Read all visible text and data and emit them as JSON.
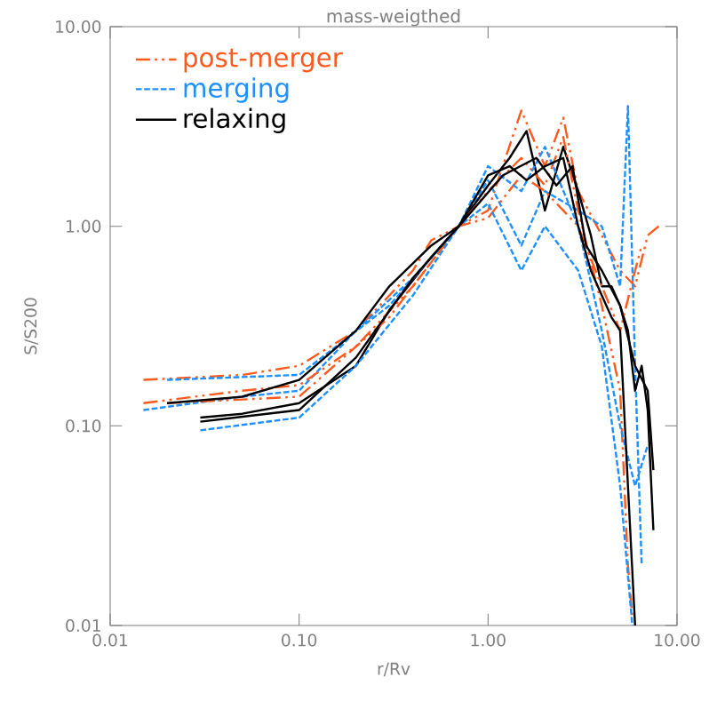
{
  "chart_data": {
    "type": "line",
    "title": "mass-weigthed",
    "xlabel": "r/Rv",
    "ylabel": "S/S200",
    "log": "xy",
    "xlim": [
      0.01,
      10
    ],
    "ylim": [
      0.01,
      10
    ],
    "xticks": [
      {
        "value": 0.01,
        "label": "0.01"
      },
      {
        "value": 0.1,
        "label": "0.10"
      },
      {
        "value": 1,
        "label": "1.00"
      },
      {
        "value": 10,
        "label": "10.00"
      }
    ],
    "yticks": [
      {
        "value": 0.01,
        "label": "0.01"
      },
      {
        "value": 0.1,
        "label": "0.10"
      },
      {
        "value": 1,
        "label": "1.00"
      },
      {
        "value": 10,
        "label": "10.00"
      }
    ],
    "legend": "top left",
    "grid": false,
    "marker": "none",
    "series": [
      {
        "name": "post-merger",
        "color": "#ff5a1e",
        "line_style": "dashdotdotted",
        "x": [
          0.015,
          0.05,
          0.1,
          0.2,
          0.4,
          0.5,
          0.7,
          1,
          1.5,
          2,
          2.5,
          3,
          4,
          5,
          6,
          7,
          8
        ],
        "values": [
          0.17,
          0.18,
          0.2,
          0.3,
          0.6,
          0.85,
          1.0,
          1.2,
          3.8,
          2.0,
          3.5,
          1.5,
          0.9,
          0.6,
          0.5,
          0.9,
          1.0
        ]
      },
      {
        "name": "merging",
        "color": "#1e90ff",
        "line_style": "dashed",
        "x": [
          0.015,
          0.05,
          0.1,
          0.2,
          0.4,
          0.7,
          1,
          1.5,
          2,
          3,
          4,
          5,
          5.5,
          6,
          6.5
        ],
        "values": [
          0.12,
          0.14,
          0.15,
          0.3,
          0.55,
          1.0,
          1.7,
          0.8,
          1.5,
          1.2,
          1.0,
          0.5,
          4.0,
          0.2,
          0.02
        ]
      },
      {
        "name": "relaxing",
        "color": "#000000",
        "line_style": "solid",
        "x": [
          0.03,
          0.05,
          0.1,
          0.2,
          0.3,
          0.5,
          0.7,
          1.0,
          1.3,
          1.6,
          2.0,
          2.5,
          3.0,
          3.5,
          4.0,
          4.5,
          5.0,
          5.5,
          6.0,
          6.5,
          7,
          7.5
        ],
        "values": [
          0.11,
          0.115,
          0.13,
          0.2,
          0.38,
          0.7,
          1.0,
          1.6,
          2.2,
          3.0,
          1.2,
          2.5,
          1.5,
          0.9,
          0.5,
          0.5,
          0.4,
          0.3,
          0.15,
          0.2,
          0.12,
          0.03
        ]
      },
      {
        "color": "#ff5a1e",
        "line_style": "dashdotdotted",
        "x": [
          0.015,
          0.05,
          0.1,
          0.2,
          0.4,
          0.7,
          1,
          1.5,
          2,
          2.5,
          3,
          4,
          5,
          5.5,
          5.8
        ],
        "values": [
          0.13,
          0.15,
          0.16,
          0.25,
          0.5,
          1.0,
          1.5,
          2.2,
          1.6,
          2.8,
          1.2,
          0.4,
          0.15,
          0.02,
          0.011
        ]
      },
      {
        "color": "#ff5a1e",
        "line_style": "dashdotdotted",
        "x": [
          0.02,
          0.1,
          0.3,
          0.7,
          1,
          1.5,
          2,
          3,
          4,
          5,
          6,
          6.5
        ],
        "values": [
          0.13,
          0.14,
          0.35,
          1.0,
          1.1,
          1.8,
          1.5,
          1.0,
          0.5,
          0.3,
          0.6,
          0.8
        ]
      },
      {
        "color": "#1e90ff",
        "line_style": "dashed",
        "x": [
          0.03,
          0.1,
          0.2,
          0.4,
          0.7,
          1,
          1.5,
          2,
          3,
          4,
          5,
          6,
          7
        ],
        "values": [
          0.095,
          0.11,
          0.2,
          0.45,
          1.0,
          2.0,
          1.5,
          2.5,
          1.0,
          0.3,
          0.1,
          0.05,
          0.08
        ]
      },
      {
        "color": "#1e90ff",
        "line_style": "dashed",
        "x": [
          0.02,
          0.1,
          0.3,
          0.7,
          1,
          1.5,
          2,
          3,
          4,
          5,
          5.8
        ],
        "values": [
          0.17,
          0.18,
          0.4,
          1.0,
          1.3,
          0.6,
          1.0,
          0.6,
          0.25,
          0.05,
          0.01
        ]
      },
      {
        "color": "#000000",
        "line_style": "solid",
        "x": [
          0.02,
          0.05,
          0.1,
          0.2,
          0.3,
          0.5,
          0.7,
          1.0,
          1.3,
          1.6,
          2,
          2.5,
          3,
          3.5,
          4,
          4.5,
          5,
          5.5,
          6
        ],
        "values": [
          0.13,
          0.14,
          0.17,
          0.3,
          0.5,
          0.8,
          1.0,
          1.8,
          2.0,
          1.7,
          2.0,
          2.2,
          1.0,
          0.6,
          0.45,
          0.35,
          0.3,
          0.05,
          0.01
        ]
      },
      {
        "color": "#000000",
        "line_style": "solid",
        "x": [
          0.03,
          0.1,
          0.2,
          0.4,
          0.7,
          1.2,
          1.8,
          2.3,
          2.8,
          3.3,
          4,
          5,
          6,
          7,
          7.5
        ],
        "values": [
          0.105,
          0.12,
          0.22,
          0.55,
          1.0,
          1.8,
          2.2,
          1.6,
          2.0,
          0.8,
          0.6,
          0.4,
          0.2,
          0.15,
          0.06
        ]
      }
    ]
  }
}
